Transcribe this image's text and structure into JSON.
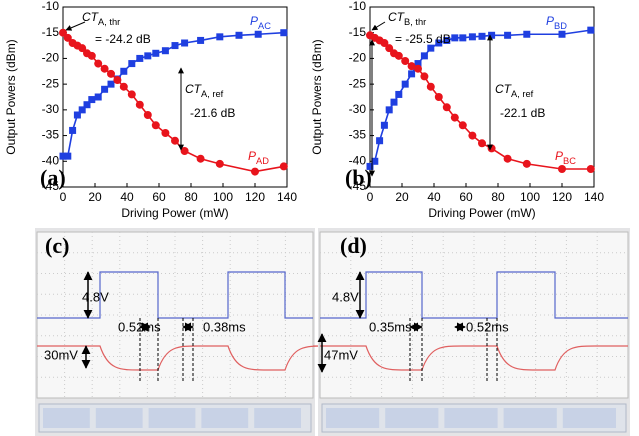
{
  "chart_data": [
    {
      "type": "line",
      "panel_label": "(a)",
      "x_label": "Driving Power (mW)",
      "y_label": "Output Powers (dBm)",
      "xlim": [
        0,
        140
      ],
      "xticks": [
        0,
        20,
        40,
        60,
        80,
        100,
        120,
        140
      ],
      "ylim": [
        -45,
        -10
      ],
      "yticks": [
        -45,
        -40,
        -35,
        -30,
        -25,
        -20,
        -15,
        -10
      ],
      "series": [
        {
          "name": "P",
          "name_sub": "AC",
          "color": "#1f3fe0",
          "marker": "square",
          "x": [
            0,
            3,
            6,
            9,
            12,
            15,
            18,
            22,
            26,
            30,
            34,
            38,
            43,
            48,
            53,
            58,
            64,
            70,
            76,
            86,
            98,
            110,
            122,
            138
          ],
          "values": [
            -39,
            -39,
            -34,
            -31,
            -30,
            -29,
            -28,
            -27.5,
            -26,
            -25,
            -24,
            -22.5,
            -21,
            -20,
            -19.5,
            -19,
            -18.5,
            -17.5,
            -17,
            -16.5,
            -15.8,
            -15.5,
            -15.3,
            -15
          ]
        },
        {
          "name": "P",
          "name_sub": "AD",
          "color": "#e8141c",
          "marker": "circle",
          "x": [
            0,
            3,
            6,
            9,
            12,
            15,
            18,
            22,
            26,
            30,
            34,
            38,
            43,
            48,
            53,
            58,
            64,
            70,
            76,
            86,
            98,
            120,
            138
          ],
          "values": [
            -15,
            -16,
            -17,
            -17.5,
            -18,
            -19,
            -19.5,
            -21,
            -22,
            -23,
            -24.2,
            -25.5,
            -27,
            -29,
            -31,
            -33,
            -34.5,
            -36,
            -38,
            -39.5,
            -40.5,
            -42,
            -41
          ]
        }
      ],
      "annotations": [
        {
          "text": "CT",
          "sub": "A, thr"
        },
        {
          "text": "= -24.2 dB"
        },
        {
          "text": "CT",
          "sub": "A, ref"
        },
        {
          "text": "-21.6 dB"
        }
      ]
    },
    {
      "type": "line",
      "panel_label": "(b)",
      "x_label": "Driving Power (mW)",
      "y_label": "Output Powers (dBm)",
      "xlim": [
        0,
        140
      ],
      "xticks": [
        0,
        20,
        40,
        60,
        80,
        100,
        120,
        140
      ],
      "ylim": [
        -45,
        -10
      ],
      "yticks": [
        -45,
        -40,
        -35,
        -30,
        -25,
        -20,
        -15,
        -10
      ],
      "series": [
        {
          "name": "P",
          "name_sub": "BD",
          "color": "#1f3fe0",
          "marker": "square",
          "x": [
            0,
            3,
            6,
            9,
            12,
            15,
            18,
            22,
            26,
            30,
            34,
            38,
            43,
            48,
            53,
            58,
            64,
            70,
            76,
            86,
            98,
            120,
            138
          ],
          "values": [
            -41,
            -40,
            -36,
            -33,
            -30,
            -28.5,
            -27,
            -25,
            -23,
            -21,
            -19.5,
            -18,
            -17,
            -16.5,
            -16,
            -16,
            -15.8,
            -15.7,
            -15.5,
            -15.5,
            -15.3,
            -15.3,
            -14.5
          ]
        },
        {
          "name": "P",
          "name_sub": "BC",
          "color": "#e8141c",
          "marker": "circle",
          "x": [
            0,
            3,
            6,
            9,
            12,
            15,
            18,
            22,
            26,
            30,
            34,
            38,
            43,
            48,
            53,
            58,
            64,
            70,
            76,
            86,
            98,
            120,
            138
          ],
          "values": [
            -15.5,
            -16,
            -16.5,
            -17,
            -18,
            -19,
            -19.5,
            -20.5,
            -21.5,
            -22,
            -23.5,
            -25.5,
            -27.5,
            -29.5,
            -31.5,
            -33,
            -35,
            -36.5,
            -37.5,
            -39.5,
            -40.5,
            -41.5,
            -41.5
          ]
        }
      ],
      "annotations": [
        {
          "text": "CT",
          "sub": "B, thr"
        },
        {
          "text": "= -25.5 dB"
        },
        {
          "text": "CT",
          "sub": "A, ref"
        },
        {
          "text": "-22.1 dB"
        }
      ]
    }
  ],
  "scope_panels": [
    {
      "panel_label": "(c)",
      "annotations": [
        "4.8V",
        "0.52ms",
        "0.38ms",
        "30mV"
      ]
    },
    {
      "panel_label": "(d)",
      "annotations": [
        "4.8V",
        "0.35ms",
        "0.52ms",
        "47mV"
      ]
    }
  ]
}
